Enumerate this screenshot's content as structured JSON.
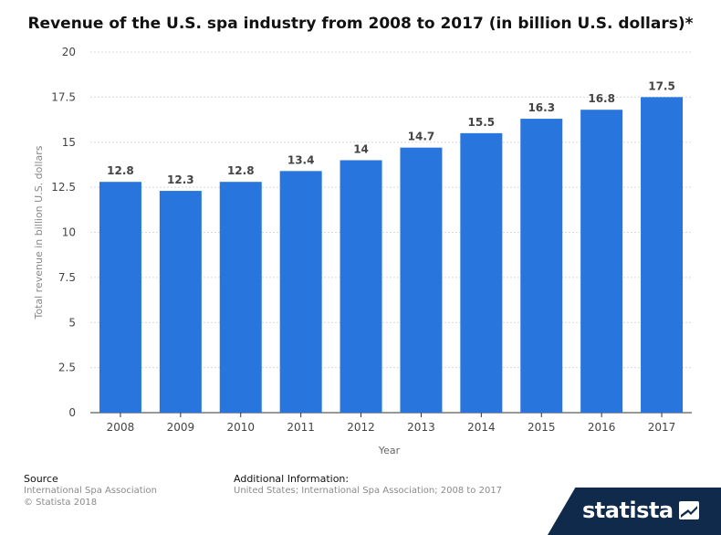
{
  "chart_data": {
    "type": "bar",
    "title": "Revenue of the U.S. spa industry from 2008 to 2017 (in billion U.S. dollars)*",
    "xlabel": "Year",
    "ylabel": "Total revenue in billion U.S. dollars",
    "categories": [
      "2008",
      "2009",
      "2010",
      "2011",
      "2012",
      "2013",
      "2014",
      "2015",
      "2016",
      "2017"
    ],
    "values": [
      12.8,
      12.3,
      12.8,
      13.4,
      14,
      14.7,
      15.5,
      16.3,
      16.8,
      17.5
    ],
    "data_labels": [
      "12.8",
      "12.3",
      "12.8",
      "13.4",
      "14",
      "14.7",
      "15.5",
      "16.3",
      "16.8",
      "17.5"
    ],
    "ylim": [
      0,
      20
    ],
    "yticks": [
      "0",
      "2.5",
      "5",
      "7.5",
      "10",
      "12.5",
      "15",
      "17.5",
      "20"
    ],
    "grid": true,
    "legend": "none",
    "colors": {
      "bar": "#2876dd",
      "grid": "#d9d9d9",
      "axis": "#333333",
      "label": "#444444"
    }
  },
  "footer": {
    "source_heading": "Source",
    "source_lines": [
      "International Spa Association",
      "© Statista 2018"
    ],
    "info_heading": "Additional Information:",
    "info_text": "United States; International Spa Association; 2008 to 2017"
  },
  "brand": {
    "name": "statista",
    "icon": "statista-logo-icon",
    "color": "#0f2a4a"
  }
}
